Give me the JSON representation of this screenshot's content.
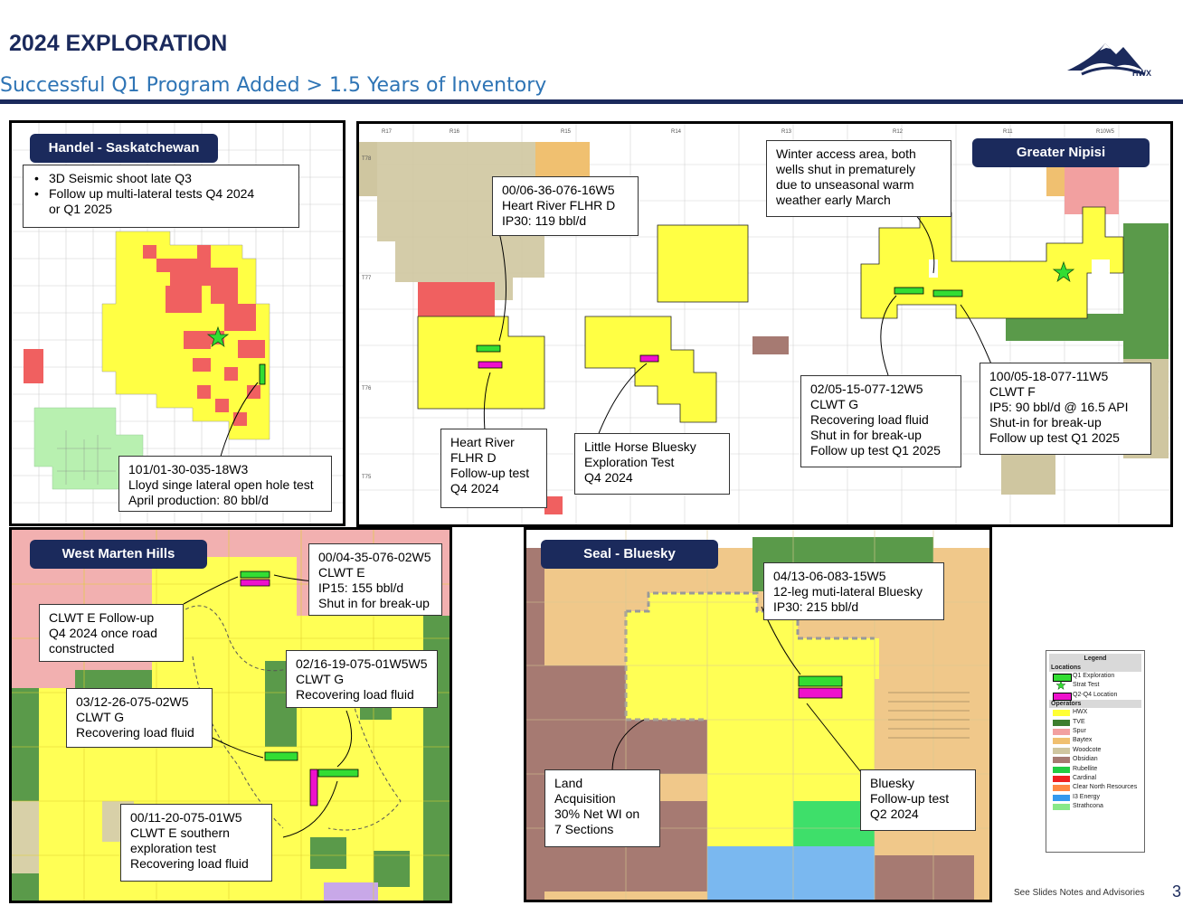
{
  "header": {
    "title": "2024 EXPLORATION",
    "subtitle": "Successful Q1 Program Added > 1.5 Years of Inventory",
    "logo_text": "HWX"
  },
  "panels": {
    "handel": {
      "title": "Handel - Saskatchewan",
      "bullets": [
        "3D Seismic shoot late Q3",
        "Follow up multi-lateral tests Q4 2024",
        "or Q1 2025"
      ],
      "well_callout": [
        "101/01-30-035-18W3",
        "Lloyd singe lateral open hole test",
        "April production: 80 bbl/d"
      ]
    },
    "nipisi": {
      "title": "Greater Nipisi",
      "range_labels": [
        "R17",
        "R16",
        "R15",
        "R14",
        "R13",
        "R12",
        "R11",
        "R10W5"
      ],
      "township_labels": [
        "T78",
        "T77",
        "T76",
        "T75"
      ],
      "winter_note": [
        "Winter access area, both",
        "wells shut in prematurely",
        "due to unseasonal warm",
        "weather early March"
      ],
      "well1": [
        "00/06-36-076-16W5",
        "Heart River FLHR D",
        "IP30: 119 bbl/d"
      ],
      "followup1": [
        "Heart River",
        "FLHR D",
        "Follow-up test",
        "Q4 2024"
      ],
      "little_horse": [
        "Little Horse Bluesky",
        "Exploration Test",
        "Q4 2024"
      ],
      "well2": [
        "02/05-15-077-12W5",
        "CLWT G",
        "Recovering load fluid",
        "Shut in for break-up",
        "Follow up test Q1 2025"
      ],
      "well3": [
        "100/05-18-077-11W5",
        "CLWT F",
        "IP5: 90 bbl/d @ 16.5 API",
        "Shut-in for break-up",
        "Follow up test Q1 2025"
      ]
    },
    "marten": {
      "title": "West Marten Hills",
      "well1": [
        "00/04-35-076-02W5",
        "CLWT E",
        "IP15: 155 bbl/d",
        "Shut in for break-up"
      ],
      "followup": [
        "CLWT E Follow-up",
        "Q4 2024 once road",
        "constructed"
      ],
      "well2": [
        "02/16-19-075-01W5W5",
        "CLWT G",
        "Recovering load fluid"
      ],
      "well3": [
        "03/12-26-075-02W5",
        "CLWT G",
        "Recovering load fluid"
      ],
      "well4": [
        "00/11-20-075-01W5",
        "CLWT E southern",
        "exploration test",
        "Recovering load fluid"
      ]
    },
    "seal": {
      "title": "Seal - Bluesky",
      "well1": [
        "04/13-06-083-15W5",
        "12-leg muti-lateral Bluesky",
        "IP30: 215 bbl/d"
      ],
      "land": [
        "Land",
        "Acquisition",
        "30% Net WI on",
        "7 Sections"
      ],
      "followup": [
        "Bluesky",
        "Follow-up test",
        "Q2 2024"
      ]
    }
  },
  "legend": {
    "title": "Legend",
    "locations_header": "Locations",
    "locations": [
      {
        "label": "Q1 Exploration",
        "color": "#33dd33"
      },
      {
        "label": "Strat Test",
        "color": "#33dd33",
        "icon": "star-icon"
      },
      {
        "label": "Q2-Q4 Location",
        "color": "#ee11cc"
      }
    ],
    "operators_header": "Operators",
    "operators": [
      {
        "label": "HWX",
        "color": "#ffff33"
      },
      {
        "label": "TVE",
        "color": "#3e7e2e"
      },
      {
        "label": "Spur",
        "color": "#f2a0a0"
      },
      {
        "label": "Baytex",
        "color": "#f0c070"
      },
      {
        "label": "Woodcote",
        "color": "#cfc6a0"
      },
      {
        "label": "Obsidian",
        "color": "#a67a72"
      },
      {
        "label": "Rubellite",
        "color": "#22cc44"
      },
      {
        "label": "Cardinal",
        "color": "#ee2222"
      },
      {
        "label": "Clear North Resources",
        "color": "#ff8844"
      },
      {
        "label": "I3 Energy",
        "color": "#3399ee"
      },
      {
        "label": "Strathcona",
        "color": "#88e888"
      }
    ]
  },
  "footer": {
    "note": "See Slides Notes and Advisories",
    "page": "3"
  }
}
